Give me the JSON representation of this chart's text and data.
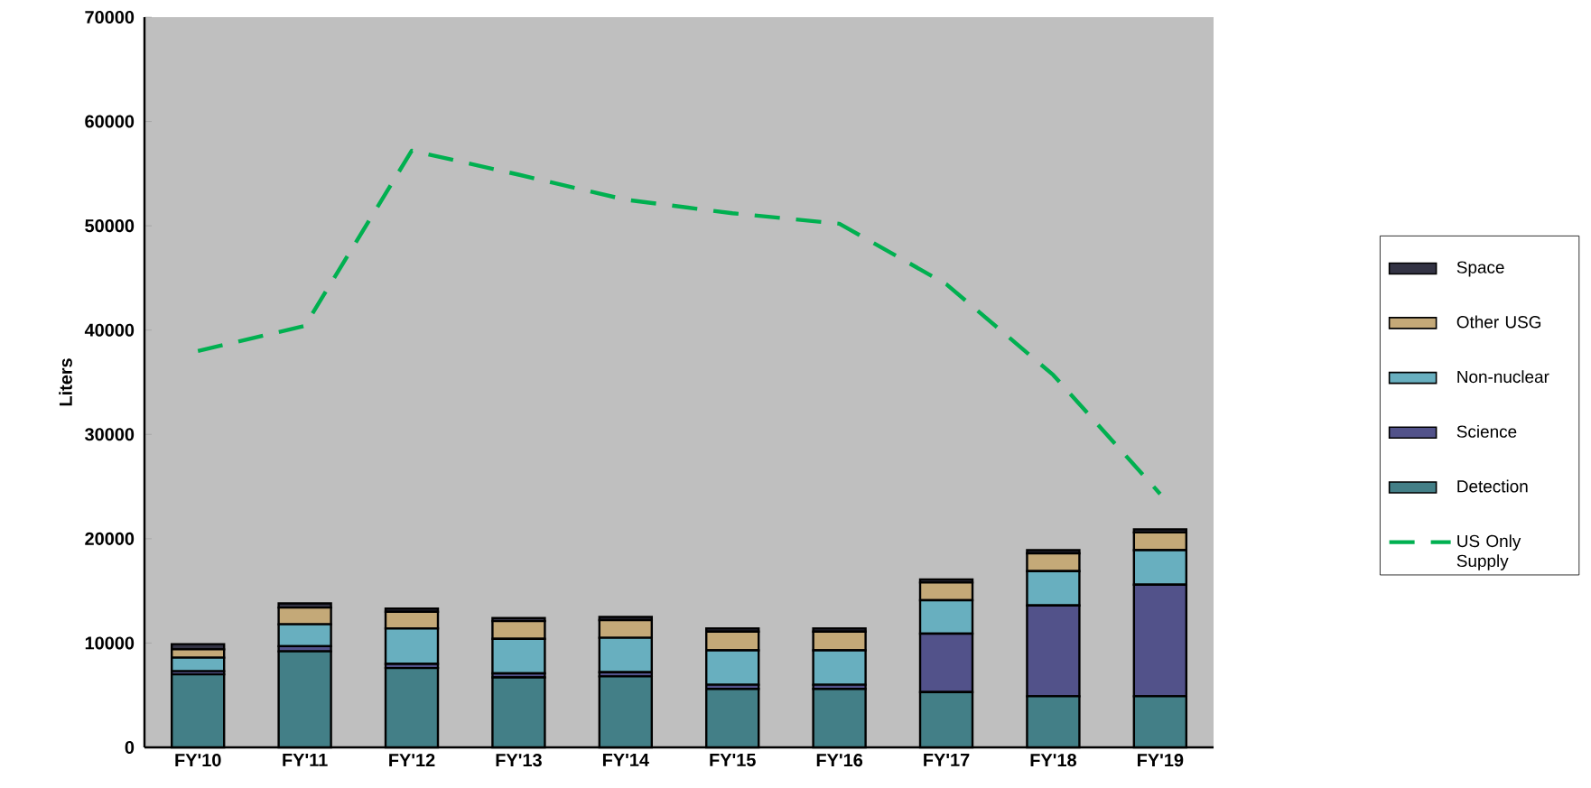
{
  "chart_data": {
    "type": "bar",
    "stacked": true,
    "ylabel": "Liters",
    "categories": [
      "FY'10",
      "FY'11",
      "FY'12",
      "FY'13",
      "FY'14",
      "FY'15",
      "FY'16",
      "FY'17",
      "FY'18",
      "FY'19"
    ],
    "series": [
      {
        "name": "Detection",
        "color": "#437f87",
        "values": [
          7000,
          9200,
          7600,
          6700,
          6800,
          5600,
          5600,
          5300,
          4900,
          4900
        ]
      },
      {
        "name": "Science",
        "color": "#52528a",
        "values": [
          300,
          500,
          400,
          400,
          400,
          400,
          400,
          5600,
          8700,
          10700
        ]
      },
      {
        "name": "Non-nuclear",
        "color": "#68afbf",
        "values": [
          1300,
          2100,
          3400,
          3300,
          3300,
          3300,
          3300,
          3200,
          3300,
          3300
        ]
      },
      {
        "name": "Other USG",
        "color": "#c4a978",
        "values": [
          800,
          1600,
          1600,
          1700,
          1700,
          1800,
          1800,
          1700,
          1700,
          1700
        ]
      },
      {
        "name": "Space",
        "color": "#333344",
        "values": [
          500,
          400,
          300,
          300,
          300,
          300,
          300,
          300,
          300,
          300
        ]
      },
      {
        "name": "US Only Supply",
        "type": "line",
        "color": "#00b050",
        "line_style": "dashed",
        "values": [
          38000,
          40400,
          57200,
          54900,
          52500,
          51200,
          50200,
          44400,
          35700,
          24300
        ]
      }
    ],
    "ylim": [
      0,
      70000
    ],
    "yticks": [
      0,
      10000,
      20000,
      30000,
      40000,
      50000,
      60000,
      70000
    ],
    "legend": "right"
  }
}
